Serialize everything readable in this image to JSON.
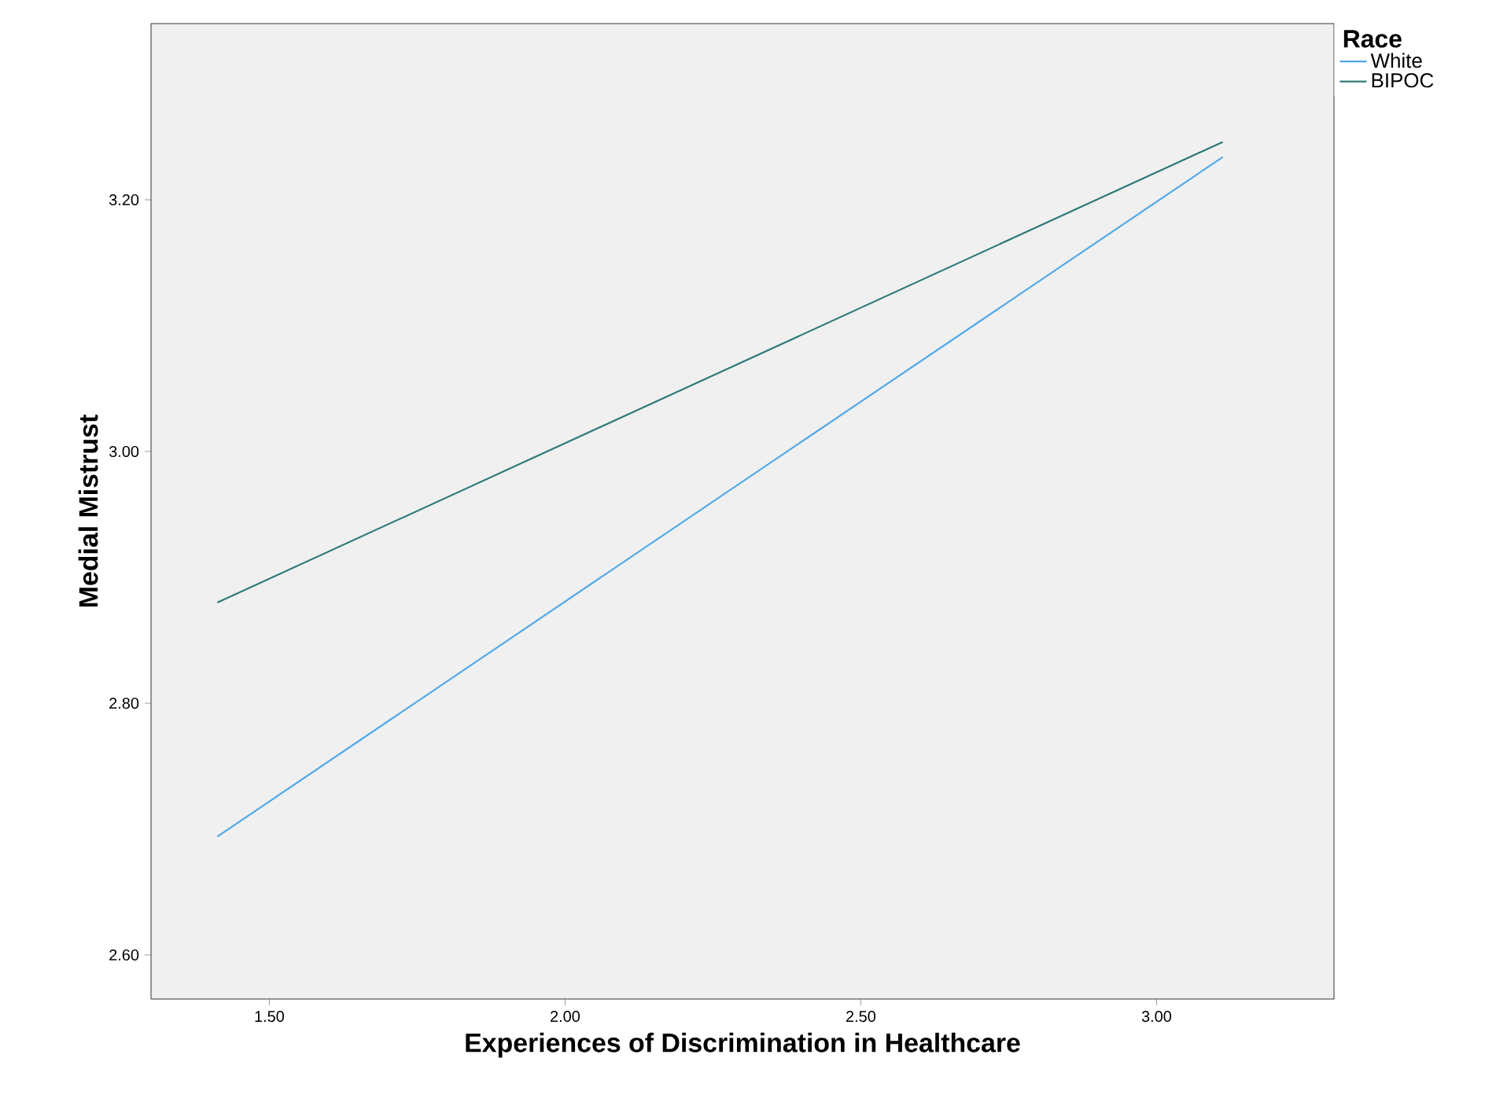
{
  "chart_data": {
    "type": "line",
    "xlabel": "Experiences of Discrimination in Healthcare",
    "ylabel": "Medial Mistrust",
    "legend_title": "Race",
    "legend": "top right",
    "x": [
      1.412,
      3.112
    ],
    "series": [
      {
        "name": "White",
        "color": "#4fa8e8",
        "values": [
          2.694,
          3.234
        ]
      },
      {
        "name": "BIPOC",
        "color": "#2e7a7a",
        "values": [
          2.88,
          3.246
        ]
      }
    ],
    "xlim": [
      1.3,
      3.3
    ],
    "xticks": [
      {
        "value": 1.5,
        "label": "1.50"
      },
      {
        "value": 2,
        "label": "2.00"
      },
      {
        "value": 2.5,
        "label": "2.50"
      },
      {
        "value": 3,
        "label": "3.00"
      }
    ],
    "ylim": [
      2.565,
      3.34
    ],
    "yticks": [
      {
        "value": 2.6,
        "label": "2.60"
      },
      {
        "value": 2.8,
        "label": "2.80"
      },
      {
        "value": 3,
        "label": "3.00"
      },
      {
        "value": 3.2,
        "label": "3.20"
      }
    ],
    "grid": false,
    "marker": "none",
    "line_style": "solid"
  }
}
